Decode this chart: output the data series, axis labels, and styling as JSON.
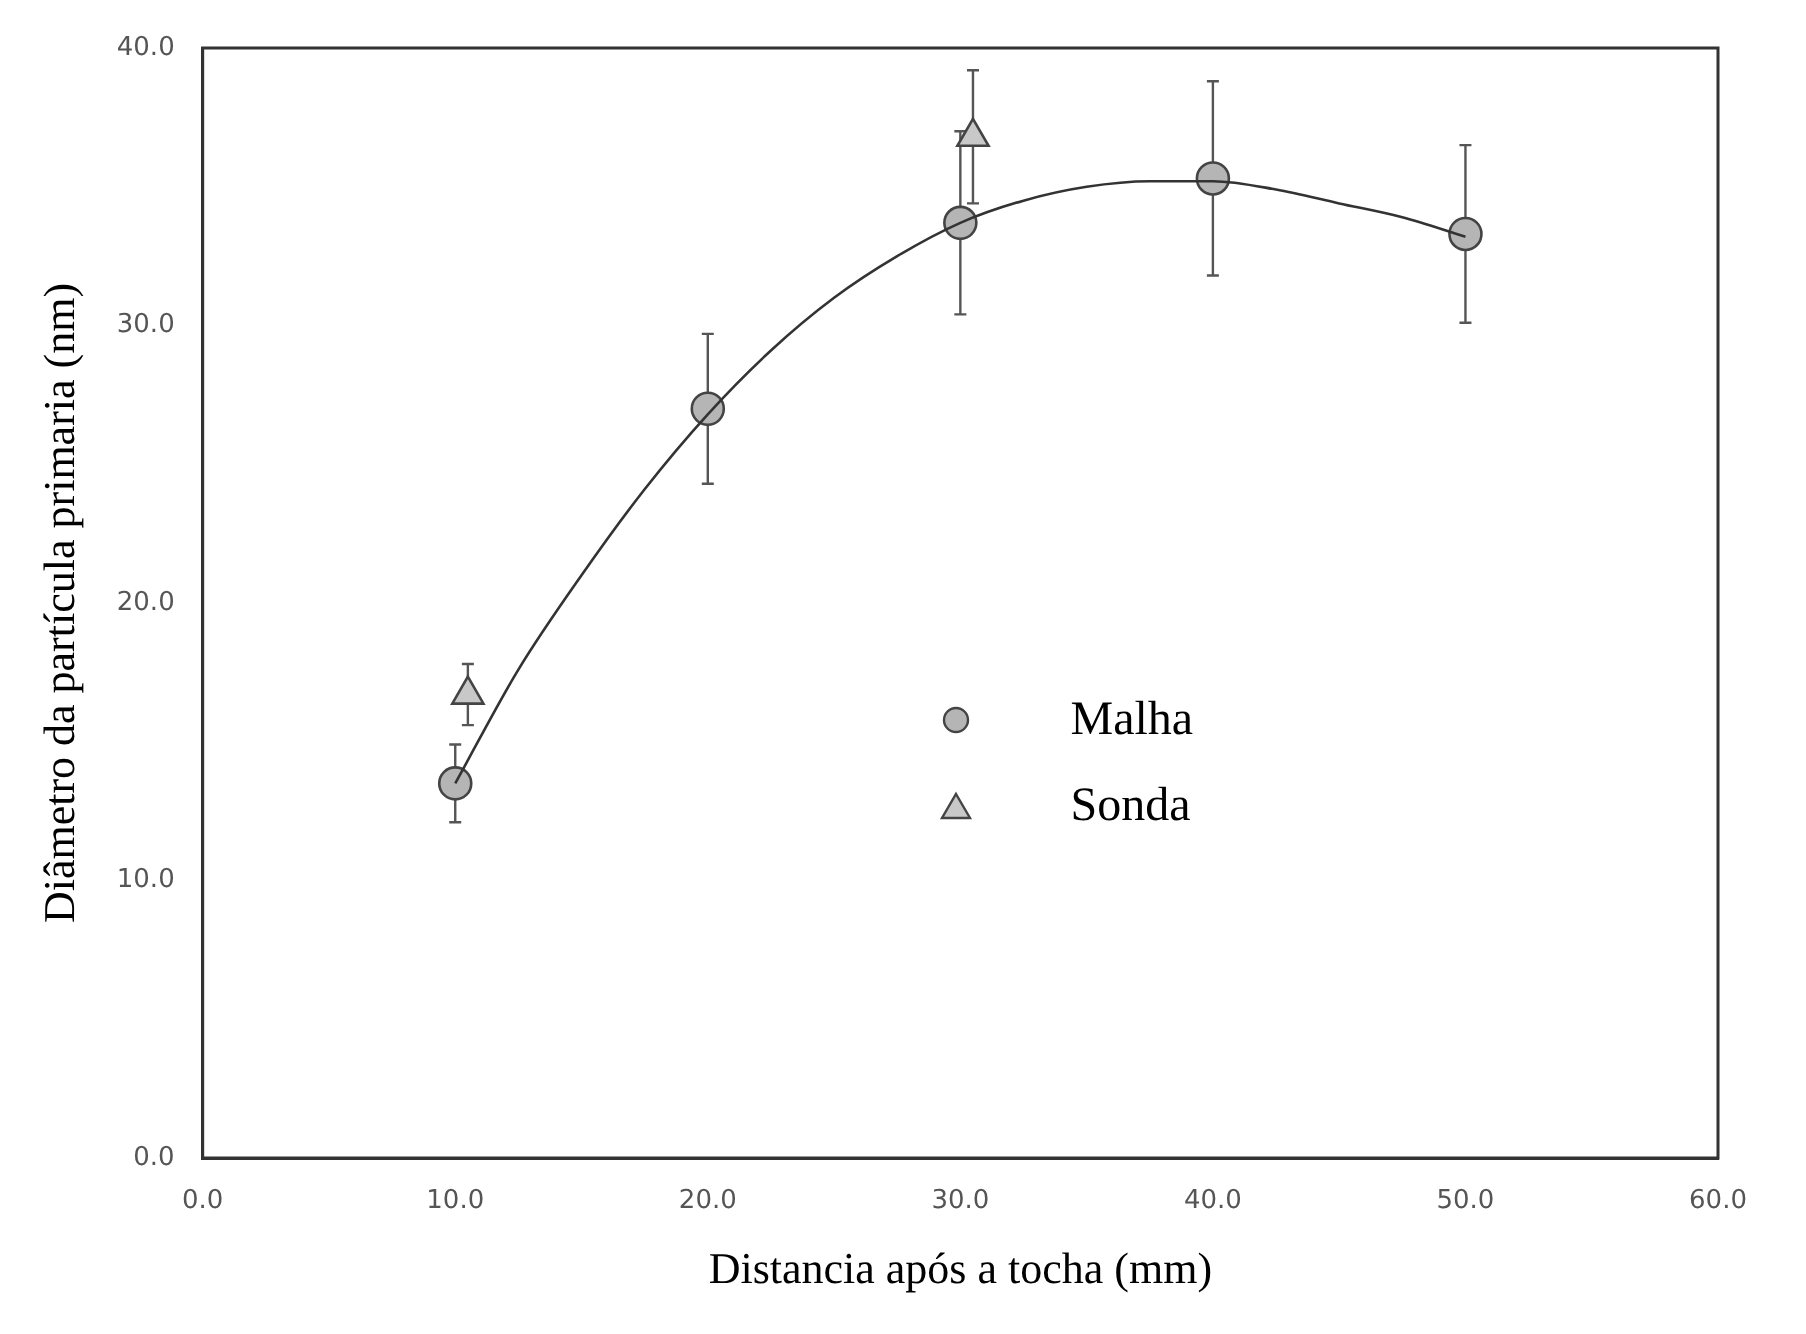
{
  "chart_data": {
    "type": "scatter",
    "xlabel": "Distancia após a tocha (mm)",
    "ylabel": "Diâmetro da partícula primaria (nm)",
    "series": [
      {
        "name": "Malha",
        "color": "#b5b5b5",
        "x": [
          10,
          20,
          30,
          40,
          50
        ],
        "values": [
          13.5,
          27.0,
          33.7,
          35.3,
          33.3
        ],
        "errors": [
          1.4,
          2.7,
          3.3,
          3.5,
          3.2
        ],
        "marker": "circle"
      },
      {
        "name": "Sonda",
        "color": "#c8c8c8",
        "x": [
          10.5,
          30.5
        ],
        "values": [
          16.7,
          36.8
        ],
        "errors": [
          1.1,
          2.4
        ],
        "marker": "triangle"
      },
      {
        "type": "line",
        "color": "#333333",
        "x": [
          10,
          12.5,
          15,
          17.5,
          20,
          22.5,
          25,
          27.5,
          30,
          32.5,
          35,
          37.5,
          40,
          42.5,
          45,
          47.5,
          50
        ],
        "values": [
          13.5,
          17.6,
          21.0,
          24.1,
          26.8,
          29.1,
          31.0,
          32.5,
          33.7,
          34.5,
          35.0,
          35.2,
          35.2,
          34.9,
          34.4,
          33.9,
          33.2
        ],
        "marker": "none"
      }
    ],
    "xlim": [
      0,
      60
    ],
    "xticks": [
      {
        "value": 0,
        "label": "0.0"
      },
      {
        "value": 10,
        "label": "10.0"
      },
      {
        "value": 20,
        "label": "20.0"
      },
      {
        "value": 30,
        "label": "30.0"
      },
      {
        "value": 40,
        "label": "40.0"
      },
      {
        "value": 50,
        "label": "50.0"
      },
      {
        "value": 60,
        "label": "60.0"
      }
    ],
    "ylim": [
      0,
      40
    ],
    "yticks": [
      {
        "value": 0,
        "label": "0.0"
      },
      {
        "value": 10,
        "label": "10.0"
      },
      {
        "value": 20,
        "label": "20.0"
      },
      {
        "value": 30,
        "label": "30.0"
      },
      {
        "value": 40,
        "label": "40.0"
      }
    ],
    "grid": false,
    "legend": "center"
  }
}
